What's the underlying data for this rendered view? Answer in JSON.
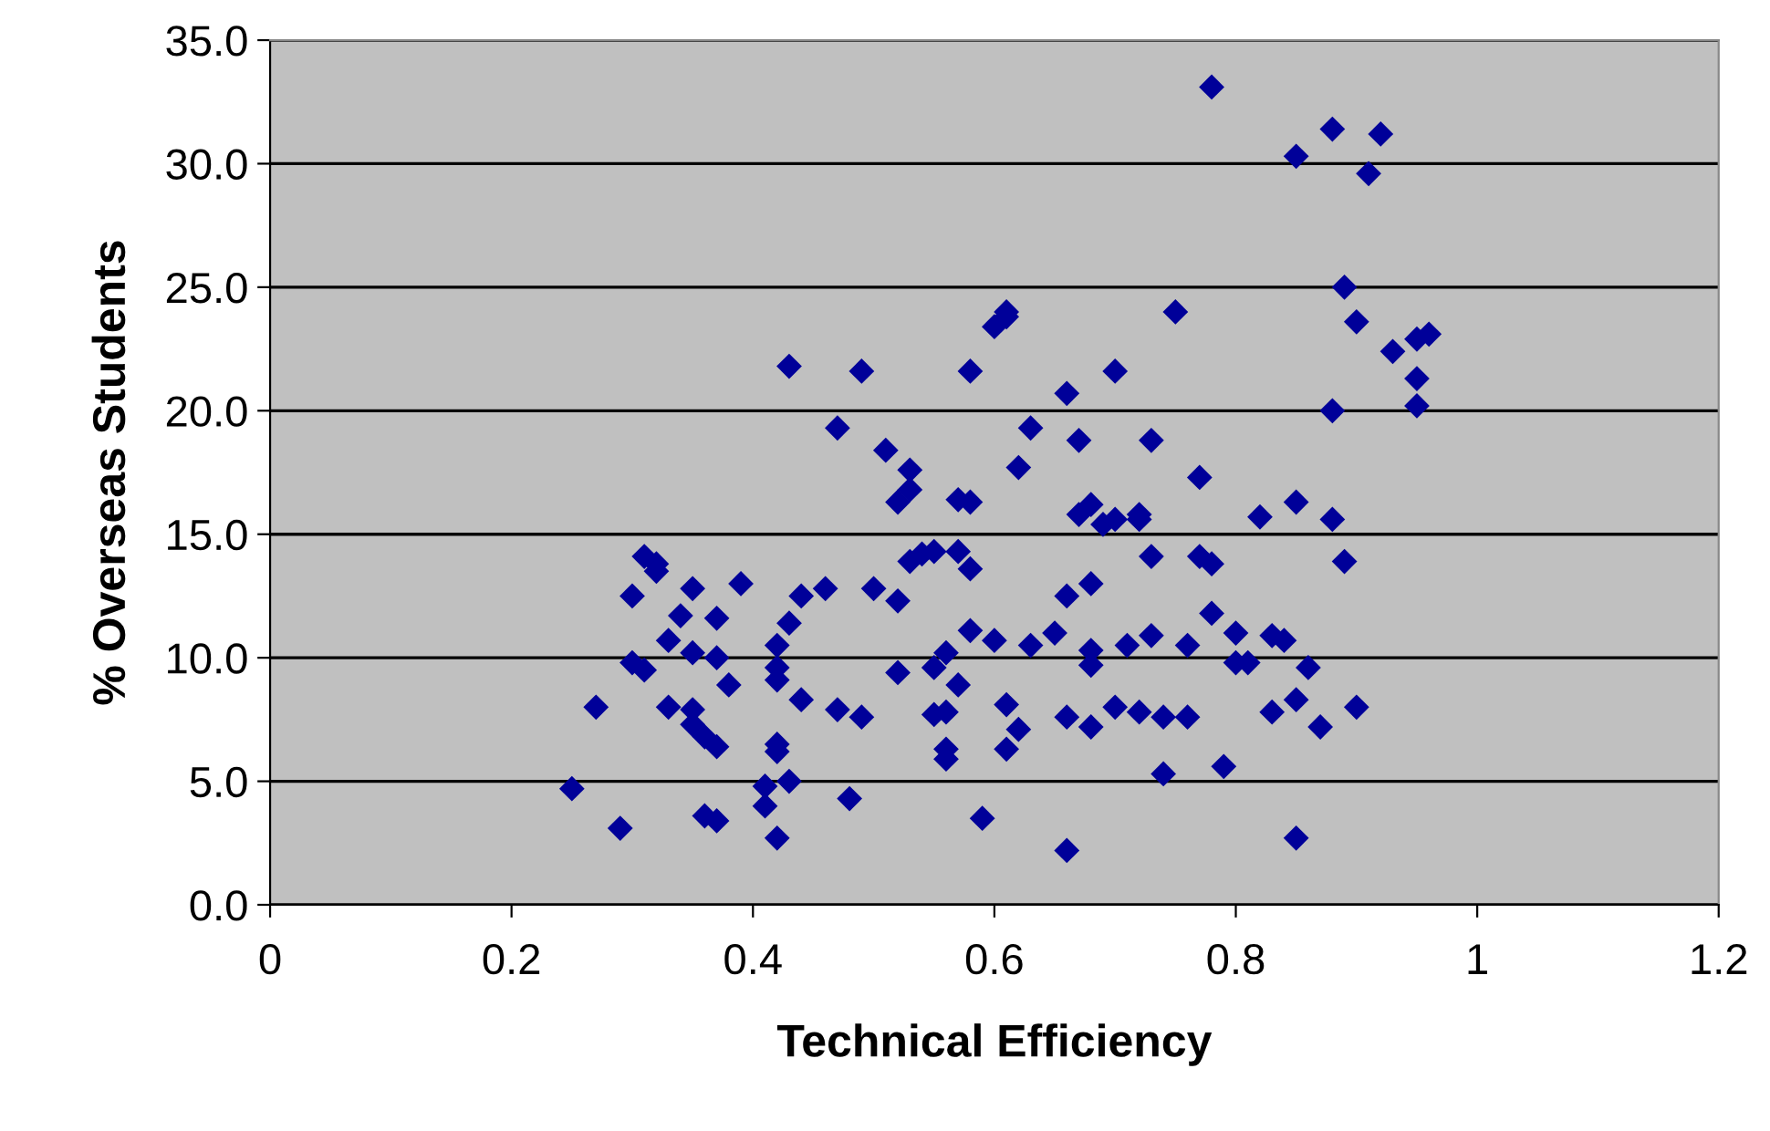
{
  "chart_data": {
    "type": "scatter",
    "xlabel": "Technical Efficiency",
    "ylabel": "% Overseas Students",
    "xlim": [
      0,
      1.2
    ],
    "xticks": [
      0,
      0.2,
      0.4,
      0.6,
      0.8,
      1,
      1.2
    ],
    "ylim": [
      0,
      35
    ],
    "yticks": [
      {
        "value": 0,
        "label": "0.0"
      },
      {
        "value": 5,
        "label": "5.0"
      },
      {
        "value": 10,
        "label": "10.0"
      },
      {
        "value": 15,
        "label": "15.0"
      },
      {
        "value": 20,
        "label": "20.0"
      },
      {
        "value": 25,
        "label": "25.0"
      },
      {
        "value": 30,
        "label": "30.0"
      },
      {
        "value": 35,
        "label": "35.0"
      }
    ],
    "grid": "y",
    "marker": "diamond",
    "series": [
      {
        "color": "#000099",
        "x": [
          0.25,
          0.27,
          0.29,
          0.3,
          0.3,
          0.31,
          0.31,
          0.32,
          0.32,
          0.33,
          0.33,
          0.34,
          0.35,
          0.35,
          0.35,
          0.35,
          0.36,
          0.36,
          0.37,
          0.37,
          0.37,
          0.37,
          0.38,
          0.39,
          0.41,
          0.41,
          0.42,
          0.42,
          0.42,
          0.42,
          0.42,
          0.43,
          0.42,
          0.43,
          0.43,
          0.44,
          0.44,
          0.46,
          0.47,
          0.47,
          0.48,
          0.49,
          0.49,
          0.5,
          0.51,
          0.52,
          0.52,
          0.52,
          0.53,
          0.53,
          0.53,
          0.54,
          0.55,
          0.55,
          0.55,
          0.56,
          0.56,
          0.56,
          0.56,
          0.57,
          0.57,
          0.57,
          0.58,
          0.58,
          0.58,
          0.58,
          0.59,
          0.6,
          0.6,
          0.61,
          0.61,
          0.61,
          0.61,
          0.62,
          0.62,
          0.63,
          0.63,
          0.65,
          0.66,
          0.66,
          0.66,
          0.66,
          0.67,
          0.67,
          0.68,
          0.68,
          0.68,
          0.68,
          0.68,
          0.69,
          0.7,
          0.7,
          0.7,
          0.71,
          0.72,
          0.72,
          0.72,
          0.73,
          0.73,
          0.73,
          0.74,
          0.74,
          0.75,
          0.76,
          0.76,
          0.77,
          0.77,
          0.78,
          0.78,
          0.78,
          0.79,
          0.8,
          0.8,
          0.81,
          0.82,
          0.83,
          0.83,
          0.84,
          0.85,
          0.85,
          0.85,
          0.85,
          0.86,
          0.87,
          0.88,
          0.88,
          0.88,
          0.89,
          0.89,
          0.9,
          0.9,
          0.91,
          0.92,
          0.93,
          0.95,
          0.95,
          0.95,
          0.96
        ],
        "values": [
          4.7,
          8.0,
          3.1,
          12.5,
          9.8,
          9.5,
          14.1,
          13.8,
          13.5,
          10.7,
          8.0,
          11.7,
          10.2,
          7.9,
          12.8,
          7.3,
          3.6,
          6.8,
          11.6,
          6.4,
          3.4,
          10.0,
          8.9,
          13.0,
          4.8,
          4.0,
          6.5,
          6.2,
          10.5,
          9.6,
          9.1,
          5.0,
          2.7,
          21.8,
          11.4,
          8.3,
          12.5,
          12.8,
          7.9,
          19.3,
          4.3,
          21.6,
          7.6,
          12.8,
          18.4,
          16.3,
          9.4,
          12.3,
          17.6,
          16.8,
          13.9,
          14.2,
          14.3,
          9.6,
          7.7,
          6.3,
          7.8,
          10.2,
          5.9,
          16.4,
          14.3,
          8.9,
          16.3,
          21.6,
          13.6,
          11.1,
          3.5,
          10.7,
          23.4,
          23.8,
          24.0,
          8.1,
          6.3,
          17.7,
          7.1,
          19.3,
          10.5,
          11.0,
          20.7,
          12.5,
          7.6,
          2.2,
          18.8,
          15.8,
          16.2,
          10.3,
          7.2,
          13.0,
          9.7,
          15.4,
          21.6,
          15.6,
          8.0,
          10.5,
          15.6,
          15.8,
          7.8,
          18.8,
          14.1,
          10.9,
          7.6,
          5.3,
          24.0,
          10.5,
          7.6,
          17.3,
          14.1,
          33.1,
          11.8,
          13.8,
          5.6,
          9.8,
          11.0,
          9.8,
          15.7,
          10.9,
          7.8,
          10.7,
          30.3,
          16.3,
          8.3,
          2.7,
          9.6,
          7.2,
          31.4,
          15.6,
          20.0,
          13.9,
          25.0,
          23.6,
          8.0,
          29.6,
          31.2,
          22.4,
          21.3,
          20.2,
          22.9,
          23.1
        ]
      }
    ]
  }
}
